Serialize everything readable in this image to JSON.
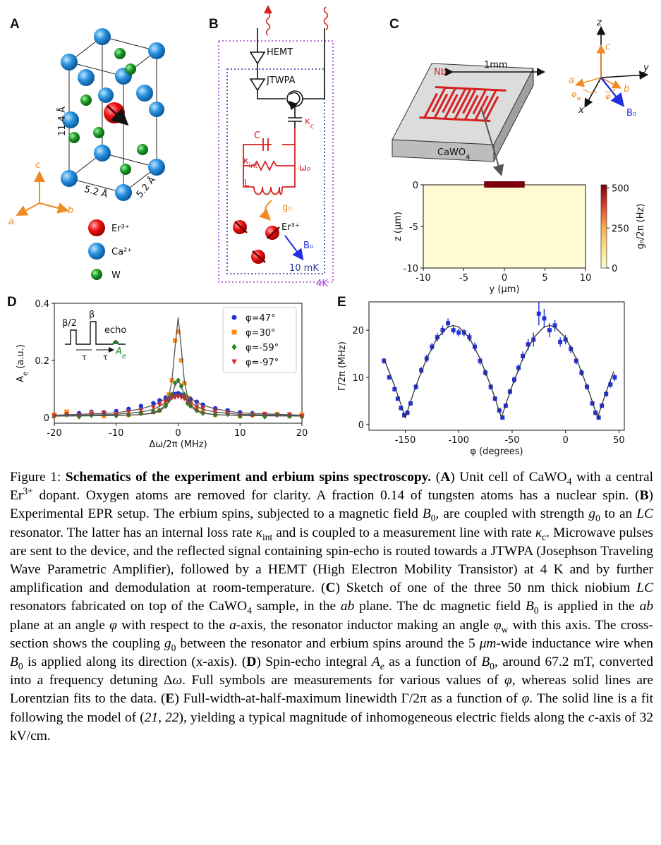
{
  "panel_a": {
    "label": "A",
    "height": "11.4 Å",
    "width1": "5.2 Å",
    "width2": "5.2 Å",
    "axis_c": "c",
    "axis_a": "a",
    "axis_b": "b",
    "legend": [
      "Er³⁺",
      "Ca²⁺",
      "W"
    ]
  },
  "panel_b": {
    "label": "B",
    "hemt": "HEMT",
    "jtwpa": "JTWPA",
    "kappa_c": {
      "base": "κ",
      "sub": "c"
    },
    "cap": "C",
    "kappa_int": {
      "base": "κ",
      "sub": "int"
    },
    "omega": "ω₀",
    "ind": "L",
    "coupling": "g₀",
    "ion": "Er³⁺",
    "field": "B₀",
    "cold": "10 mK",
    "warm": "4K"
  },
  "panel_c": {
    "label": "C",
    "metal": "Nb",
    "scale": "1mm",
    "substrate": {
      "base": "CaWO",
      "sub": "4"
    },
    "axis_z": "z",
    "axis_c": "c",
    "axis_y": "y",
    "axis_a": "a",
    "axis_b": "b",
    "axis_x": "x",
    "phi_w": {
      "base": "φ",
      "sub": "w"
    },
    "phi": "φ",
    "field": "B₀"
  },
  "panel_d": {
    "label": "D",
    "inset": {
      "half": "β/2",
      "full": "β",
      "echo": "echo",
      "tau1": "τ",
      "tau2": "τ",
      "ae": {
        "base": "A",
        "sub": "e"
      }
    }
  },
  "panel_e": {
    "label": "E"
  },
  "chart_data": [
    {
      "type": "heatmap",
      "xlabel": "y (µm)",
      "ylabel": "z (µm)",
      "xlim": [
        -10,
        10
      ],
      "ylim": [
        -10,
        0
      ],
      "xticks": [
        -10,
        -5,
        0,
        5,
        10
      ],
      "yticks": [
        -10,
        -5,
        0
      ],
      "clim": [
        0,
        520
      ],
      "cticks": [
        0,
        250,
        500
      ],
      "clabel": "g₀/2π (Hz)",
      "colormap": [
        "#fffbd2",
        "#fde08a",
        "#f9a950",
        "#e0402a",
        "#7a0010"
      ]
    },
    {
      "type": "scatter",
      "xlabel": "Δω/2π (MHz)",
      "ylabel": {
        "base": "A",
        "sub": "e",
        "after": " (a.u.)"
      },
      "xlim": [
        -20,
        20
      ],
      "ylim": [
        -0.02,
        0.4
      ],
      "xticks": [
        -20,
        -10,
        0,
        10,
        20
      ],
      "yticks": [
        0,
        0.2,
        0.4
      ],
      "legend": "upper right",
      "x": [
        -20,
        -18,
        -16,
        -14,
        -12,
        -10,
        -8,
        -6,
        -4,
        -3,
        -2,
        -1.5,
        -1,
        -0.5,
        0,
        0.5,
        1,
        1.5,
        2,
        3,
        4,
        6,
        8,
        10,
        12,
        14,
        16,
        18,
        20
      ],
      "fit_x": [
        -20,
        -10,
        -6,
        -4,
        -3,
        -2,
        -1.5,
        -1,
        -0.5,
        0,
        0.5,
        1,
        1.5,
        2,
        3,
        4,
        6,
        10,
        20
      ],
      "fit_color": "#555555",
      "series": [
        {
          "name": "φ=47°",
          "color": "#1f2fe0",
          "marker": "circle",
          "values": [
            0.01,
            0.012,
            0.015,
            0.02,
            0.018,
            0.022,
            0.03,
            0.04,
            0.05,
            0.06,
            0.07,
            0.075,
            0.078,
            0.082,
            0.085,
            0.08,
            0.076,
            0.07,
            0.065,
            0.055,
            0.045,
            0.032,
            0.025,
            0.018,
            0.015,
            0.012,
            0.01,
            0.008,
            0.01
          ],
          "fit": [
            0.008,
            0.016,
            0.03,
            0.043,
            0.054,
            0.067,
            0.073,
            0.078,
            0.082,
            0.083,
            0.082,
            0.078,
            0.073,
            0.067,
            0.054,
            0.043,
            0.03,
            0.016,
            0.008
          ]
        },
        {
          "name": "φ=30°",
          "color": "#ff8c1a",
          "marker": "square",
          "values": [
            0.01,
            0.02,
            0.008,
            0.015,
            0.005,
            0.012,
            0.01,
            0.015,
            0.02,
            0.025,
            0.05,
            0.08,
            0.13,
            0.27,
            0.3,
            0.2,
            0.12,
            0.07,
            0.045,
            0.03,
            0.02,
            0.01,
            0.015,
            0.005,
            0.01,
            0.008,
            0.012,
            0.005,
            0.01
          ],
          "fit": [
            0.005,
            0.007,
            0.01,
            0.017,
            0.025,
            0.047,
            0.074,
            0.129,
            0.244,
            0.35,
            0.244,
            0.129,
            0.074,
            0.047,
            0.025,
            0.017,
            0.01,
            0.007,
            0.005
          ]
        },
        {
          "name": "φ=-59°",
          "color": "#1a8a1a",
          "marker": "diamond",
          "values": [
            0.005,
            0.01,
            0.003,
            0.008,
            0.012,
            0.006,
            0.01,
            0.015,
            0.02,
            0.025,
            0.04,
            0.06,
            0.08,
            0.12,
            0.13,
            0.11,
            0.08,
            0.05,
            0.04,
            0.025,
            0.015,
            0.01,
            0.012,
            0.005,
            0.008,
            0.003,
            0.01,
            0.005,
            0.002
          ],
          "fit": [
            0.005,
            0.007,
            0.01,
            0.015,
            0.022,
            0.039,
            0.054,
            0.079,
            0.111,
            0.13,
            0.111,
            0.079,
            0.054,
            0.039,
            0.022,
            0.015,
            0.01,
            0.007,
            0.005
          ]
        },
        {
          "name": "φ=-97°",
          "color": "#e8202a",
          "marker": "triangle",
          "values": [
            0.005,
            0.01,
            0.008,
            0.012,
            0.015,
            0.01,
            0.02,
            0.025,
            0.035,
            0.045,
            0.055,
            0.062,
            0.068,
            0.07,
            0.072,
            0.07,
            0.065,
            0.058,
            0.05,
            0.038,
            0.03,
            0.02,
            0.015,
            0.01,
            0.008,
            0.012,
            0.006,
            0.01,
            0.004
          ],
          "fit": [
            0.006,
            0.011,
            0.019,
            0.029,
            0.039,
            0.053,
            0.06,
            0.067,
            0.072,
            0.075,
            0.072,
            0.067,
            0.06,
            0.053,
            0.039,
            0.029,
            0.019,
            0.011,
            0.006
          ]
        }
      ]
    },
    {
      "type": "errorbar",
      "xlabel": "φ (degrees)",
      "ylabel": "Γ/2π (MHz)",
      "xlim": [
        -184,
        55
      ],
      "ylim": [
        -1.2,
        26
      ],
      "xticks": [
        -150,
        -100,
        -50,
        0,
        50
      ],
      "yticks": [
        0,
        10,
        20
      ],
      "x": [
        -170,
        -165,
        -160,
        -157,
        -154,
        -151,
        -148,
        -145,
        -140,
        -135,
        -130,
        -125,
        -120,
        -115,
        -110,
        -105,
        -100,
        -95,
        -90,
        -85,
        -80,
        -75,
        -70,
        -66,
        -62,
        -59,
        -56,
        -52,
        -48,
        -44,
        -40,
        -35,
        -30,
        -25,
        -20,
        -15,
        -10,
        -5,
        0,
        5,
        10,
        15,
        20,
        25,
        28,
        31,
        34,
        38,
        42,
        46
      ],
      "fit_x": [
        -170,
        -160,
        -155,
        -150,
        -145,
        -140,
        -130,
        -120,
        -110,
        -105,
        -100,
        -90,
        -80,
        -70,
        -65,
        -60,
        -55,
        -50,
        -40,
        -30,
        -20,
        -15,
        -10,
        0,
        10,
        20,
        25,
        30,
        35,
        40,
        45
      ],
      "fit_color": "#333333",
      "series": [
        {
          "color": "#2233dd",
          "marker": "square",
          "values": [
            13.5,
            10,
            7.5,
            5.5,
            3.5,
            2,
            2.5,
            4.5,
            8,
            11.5,
            14,
            16.5,
            18.5,
            20,
            21.5,
            20,
            19.5,
            19.5,
            18.5,
            16.5,
            13.5,
            11,
            8,
            5.5,
            3,
            1.5,
            4,
            7,
            9.5,
            12,
            14.5,
            17,
            18,
            23.5,
            22.5,
            20,
            21,
            17.5,
            18,
            16,
            13.5,
            11,
            8,
            4.5,
            2.5,
            1.5,
            4,
            6.5,
            8.5,
            10
          ],
          "errors": [
            0.6,
            0.5,
            0.5,
            0.5,
            0.5,
            0.5,
            0.5,
            0.5,
            0.6,
            0.7,
            0.8,
            0.8,
            0.9,
            1,
            1,
            0.8,
            0.8,
            0.8,
            0.9,
            0.9,
            0.8,
            0.7,
            0.6,
            0.5,
            0.5,
            0.5,
            0.5,
            0.6,
            0.7,
            0.8,
            1,
            1.2,
            1.5,
            2.5,
            2,
            1.5,
            1.2,
            1,
            1,
            0.9,
            0.8,
            0.7,
            0.6,
            0.5,
            0.5,
            0.5,
            0.5,
            0.6,
            0.7,
            0.8
          ],
          "fit": [
            14,
            8.2,
            4.9,
            1.5,
            4.9,
            8.2,
            14,
            18.4,
            20.7,
            21,
            20.7,
            18.4,
            14,
            8.2,
            4.9,
            1.5,
            4.9,
            8.2,
            14,
            18.4,
            20.7,
            21,
            20.7,
            18.4,
            14,
            8.2,
            4.9,
            1.5,
            4.9,
            8.2,
            11.25
          ]
        }
      ]
    }
  ],
  "caption": {
    "runs": [
      {
        "text": "Figure 1: ",
        "style": "n"
      },
      {
        "text": "Schematics of the experiment and erbium spins spectroscopy.",
        "style": "b"
      },
      {
        "text": " (",
        "style": "n"
      },
      {
        "text": "A",
        "style": "b"
      },
      {
        "text": ") Unit cell of CaWO",
        "style": "n"
      },
      {
        "text": "4",
        "style": "sub"
      },
      {
        "text": " with a central Er",
        "style": "n"
      },
      {
        "text": "3+",
        "style": "sup"
      },
      {
        "text": " dopant. Oxygen atoms are removed for clarity. A fraction 0.14 of tungsten atoms has a nuclear spin. (",
        "style": "n"
      },
      {
        "text": "B",
        "style": "b"
      },
      {
        "text": ") Experimental EPR setup. The erbium spins, subjected to a magnetic field ",
        "style": "n"
      },
      {
        "text": "B",
        "style": "i"
      },
      {
        "text": "0",
        "style": "sub"
      },
      {
        "text": ", are coupled with strength ",
        "style": "n"
      },
      {
        "text": "g",
        "style": "i"
      },
      {
        "text": "0",
        "style": "sub"
      },
      {
        "text": " to an ",
        "style": "n"
      },
      {
        "text": "LC",
        "style": "i"
      },
      {
        "text": " resonator. The latter has an internal loss rate ",
        "style": "n"
      },
      {
        "text": "κ",
        "style": "i"
      },
      {
        "text": "int",
        "style": "sub"
      },
      {
        "text": " and is coupled to a measurement line with rate ",
        "style": "n"
      },
      {
        "text": "κ",
        "style": "i"
      },
      {
        "text": "c",
        "style": "sub"
      },
      {
        "text": ". Microwave pulses are sent to the device, and the reflected signal containing spin-echo is routed towards a JTWPA (Josephson Traveling Wave Parametric Amplifier), followed by a HEMT (High Electron Mobility Transistor) at 4 K and by further amplification and demodulation at room-temperature. (",
        "style": "n"
      },
      {
        "text": "C",
        "style": "b"
      },
      {
        "text": ") Sketch of one of the three 50 nm thick niobium ",
        "style": "n"
      },
      {
        "text": "LC",
        "style": "i"
      },
      {
        "text": " resonators fabricated on top of the CaWO",
        "style": "n"
      },
      {
        "text": "4",
        "style": "sub"
      },
      {
        "text": " sample, in the ",
        "style": "n"
      },
      {
        "text": "ab",
        "style": "i"
      },
      {
        "text": " plane. The dc magnetic field ",
        "style": "n"
      },
      {
        "text": "B",
        "style": "i"
      },
      {
        "text": "0",
        "style": "sub"
      },
      {
        "text": " is applied in the ",
        "style": "n"
      },
      {
        "text": "ab",
        "style": "i"
      },
      {
        "text": " plane at an angle ",
        "style": "n"
      },
      {
        "text": "φ",
        "style": "i"
      },
      {
        "text": " with respect to the ",
        "style": "n"
      },
      {
        "text": "a",
        "style": "i"
      },
      {
        "text": "-axis, the resonator inductor making an angle ",
        "style": "n"
      },
      {
        "text": "φ",
        "style": "i"
      },
      {
        "text": "w",
        "style": "sub"
      },
      {
        "text": " with this axis. The cross-section shows the coupling ",
        "style": "n"
      },
      {
        "text": "g",
        "style": "i"
      },
      {
        "text": "0",
        "style": "sub"
      },
      {
        "text": " between the resonator and erbium spins around the 5 ",
        "style": "n"
      },
      {
        "text": "μm",
        "style": "i"
      },
      {
        "text": "-wide inductance wire when ",
        "style": "n"
      },
      {
        "text": "B",
        "style": "i"
      },
      {
        "text": "0",
        "style": "sub"
      },
      {
        "text": " is applied along its direction (x-axis). (",
        "style": "n"
      },
      {
        "text": "D",
        "style": "b"
      },
      {
        "text": ") Spin-echo integral ",
        "style": "n"
      },
      {
        "text": "A",
        "style": "i"
      },
      {
        "text": "e",
        "style": "isub"
      },
      {
        "text": " as a function of ",
        "style": "n"
      },
      {
        "text": "B",
        "style": "i"
      },
      {
        "text": "0",
        "style": "sub"
      },
      {
        "text": ", around 67.2 mT, converted into a frequency detuning Δ",
        "style": "n"
      },
      {
        "text": "ω",
        "style": "i"
      },
      {
        "text": ". Full symbols are measurements for various values of ",
        "style": "n"
      },
      {
        "text": "φ",
        "style": "i"
      },
      {
        "text": ", whereas solid lines are Lorentzian fits to the data. (",
        "style": "n"
      },
      {
        "text": "E",
        "style": "b"
      },
      {
        "text": ") Full-width-at-half-maximum linewidth Γ/2π as a function of ",
        "style": "n"
      },
      {
        "text": "φ",
        "style": "i"
      },
      {
        "text": ". The solid line is a fit following the model of (",
        "style": "n"
      },
      {
        "text": "21, 22",
        "style": "i"
      },
      {
        "text": "), yielding a typical magnitude of inhomogeneous electric fields along the ",
        "style": "n"
      },
      {
        "text": "c",
        "style": "i"
      },
      {
        "text": "-axis of 32 kV/cm.",
        "style": "n"
      }
    ]
  }
}
